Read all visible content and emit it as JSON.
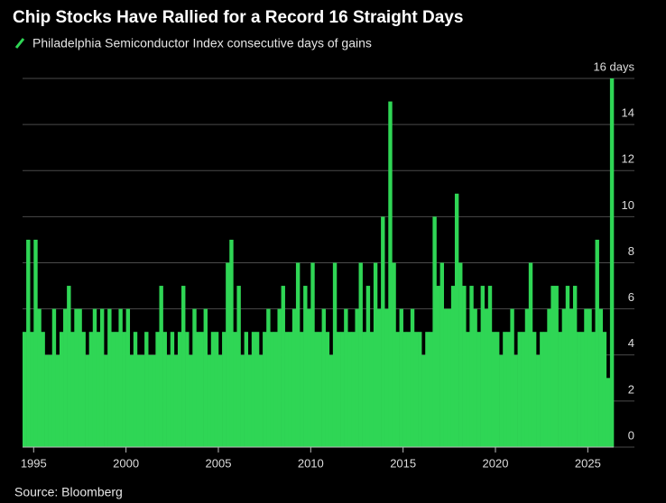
{
  "chart_data": {
    "type": "bar",
    "title": "Chip Stocks Have Rallied for a Record 16 Straight Days",
    "series": [
      {
        "name": "Philadelphia Semiconductor Index consecutive days of gains",
        "color": "#2fd655",
        "values": [
          5,
          9,
          5,
          9,
          6,
          5,
          4,
          4,
          6,
          4,
          5,
          6,
          7,
          5,
          6,
          6,
          5,
          4,
          5,
          6,
          5,
          6,
          4,
          6,
          5,
          5,
          6,
          5,
          6,
          4,
          5,
          4,
          4,
          5,
          4,
          4,
          5,
          7,
          5,
          4,
          5,
          4,
          5,
          7,
          5,
          4,
          6,
          5,
          5,
          6,
          4,
          5,
          5,
          4,
          5,
          8,
          9,
          5,
          7,
          4,
          5,
          4,
          5,
          5,
          4,
          5,
          6,
          5,
          5,
          6,
          7,
          5,
          5,
          6,
          8,
          5,
          7,
          6,
          8,
          5,
          5,
          6,
          5,
          4,
          8,
          5,
          5,
          6,
          5,
          5,
          6,
          8,
          5,
          7,
          5,
          8,
          6,
          10,
          6,
          15,
          8,
          5,
          6,
          5,
          5,
          6,
          5,
          5,
          4,
          5,
          5,
          10,
          7,
          8,
          6,
          6,
          7,
          11,
          8,
          7,
          5,
          7,
          6,
          5,
          7,
          6,
          7,
          5,
          5,
          4,
          5,
          5,
          6,
          4,
          5,
          5,
          6,
          8,
          5,
          4,
          5,
          5,
          6,
          7,
          7,
          5,
          6,
          7,
          6,
          7,
          5,
          5,
          6,
          6,
          5,
          9,
          6,
          5,
          3,
          16
        ]
      }
    ],
    "x": [
      1994.4,
      1994.6,
      1994.8,
      1995.0,
      1995.2,
      1995.4,
      1995.6,
      1995.8,
      1996.0,
      1996.2,
      1996.4,
      1996.6,
      1996.8,
      1997.0,
      1997.2,
      1997.4,
      1997.6,
      1997.8,
      1998.0,
      1998.2,
      1998.4,
      1998.6,
      1998.8,
      1999.0,
      1999.2,
      1999.4,
      1999.6,
      1999.8,
      2000.0,
      2000.2,
      2000.4,
      2000.6,
      2000.8,
      2001.0,
      2001.2,
      2001.4,
      2001.6,
      2001.8,
      2002.0,
      2002.2,
      2002.4,
      2002.6,
      2002.8,
      2003.0,
      2003.2,
      2003.4,
      2003.6,
      2003.8,
      2004.0,
      2004.2,
      2004.4,
      2004.6,
      2004.8,
      2005.0,
      2005.2,
      2005.4,
      2005.6,
      2005.8,
      2006.0,
      2006.2,
      2006.4,
      2006.6,
      2006.8,
      2007.0,
      2007.2,
      2007.4,
      2007.6,
      2007.8,
      2008.0,
      2008.2,
      2008.4,
      2008.6,
      2008.8,
      2009.0,
      2009.2,
      2009.4,
      2009.6,
      2009.8,
      2010.0,
      2010.2,
      2010.4,
      2010.6,
      2010.8,
      2011.0,
      2011.2,
      2011.4,
      2011.6,
      2011.8,
      2012.0,
      2012.2,
      2012.4,
      2012.6,
      2012.8,
      2013.0,
      2013.2,
      2013.4,
      2013.6,
      2013.8,
      2014.0,
      2014.2,
      2014.4,
      2014.6,
      2014.8,
      2015.0,
      2015.2,
      2015.4,
      2015.6,
      2015.8,
      2016.0,
      2016.2,
      2016.4,
      2016.6,
      2016.8,
      2017.0,
      2017.2,
      2017.4,
      2017.6,
      2017.8,
      2018.0,
      2018.2,
      2018.4,
      2018.6,
      2018.8,
      2019.0,
      2019.2,
      2019.4,
      2019.6,
      2019.8,
      2020.0,
      2020.2,
      2020.4,
      2020.6,
      2020.8,
      2021.0,
      2021.2,
      2021.4,
      2021.6,
      2021.8,
      2022.0,
      2022.2,
      2022.4,
      2022.6,
      2022.8,
      2023.0,
      2023.2,
      2023.4,
      2023.6,
      2023.8,
      2024.0,
      2024.2,
      2024.4,
      2024.6,
      2024.8,
      2025.0,
      2025.2,
      2025.4,
      2025.6,
      2025.8,
      2026.0,
      2026.2
    ],
    "xlim": [
      1994.4,
      2026.4
    ],
    "xticks": [
      1995,
      2000,
      2005,
      2010,
      2015,
      2020,
      2025
    ],
    "ylim": [
      0,
      16
    ],
    "yticks": [
      0,
      2,
      4,
      6,
      8,
      10,
      12,
      14,
      {
        "value": 16,
        "label": "16 days"
      }
    ],
    "grid": true,
    "source": "Source: Bloomberg"
  }
}
